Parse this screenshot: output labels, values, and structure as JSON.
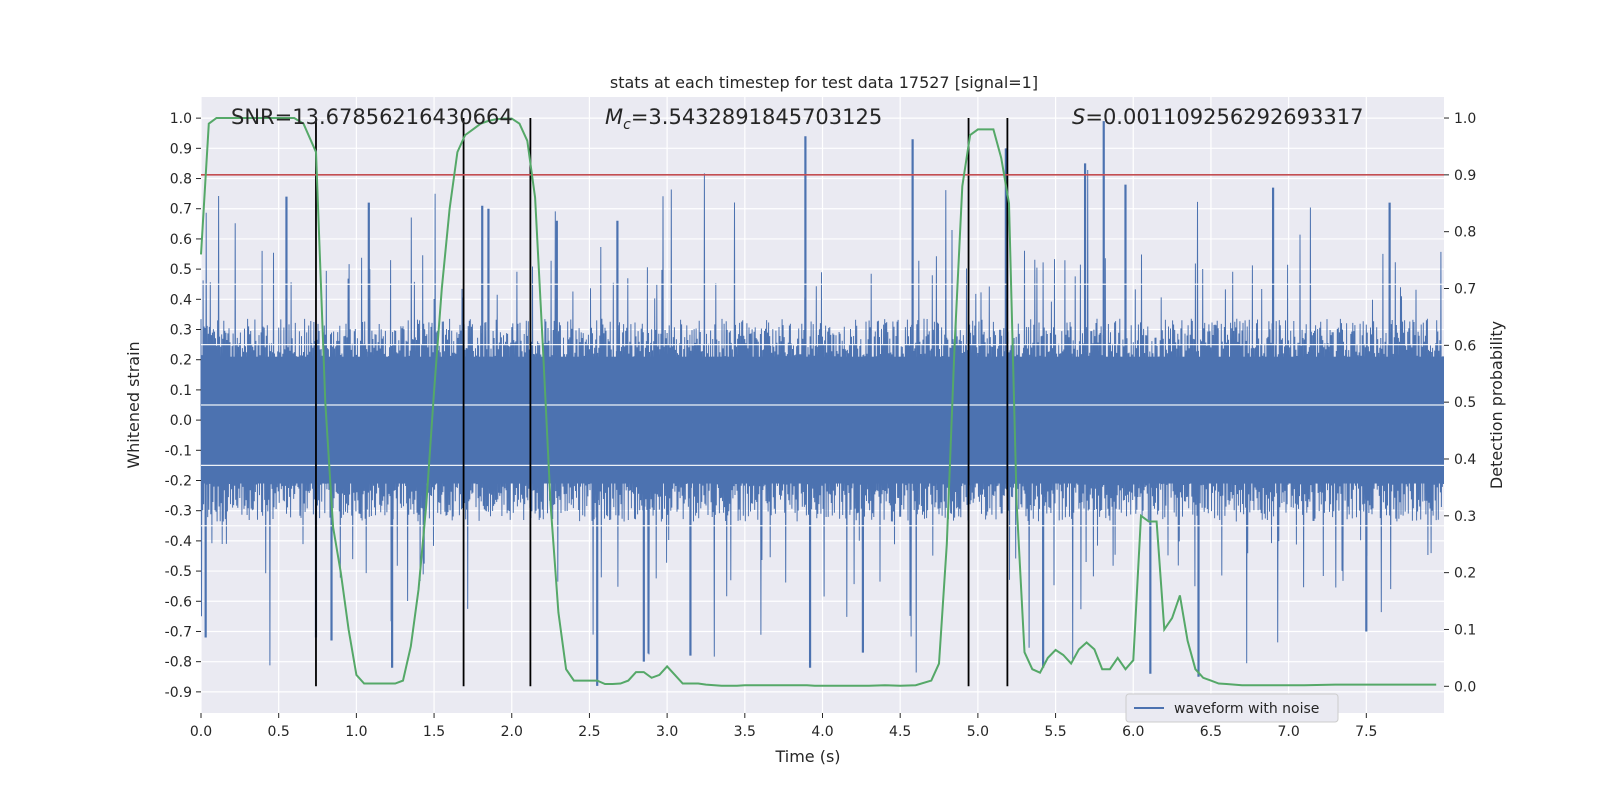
{
  "chart_data": {
    "type": "line",
    "title": "stats at each timestep for test data 17527 [signal=1]",
    "xlabel": "Time (s)",
    "ylabel": "Whitened strain",
    "y2label": "Detection probability",
    "xlim": [
      0.0,
      8.0
    ],
    "ylim": [
      -0.97,
      1.07
    ],
    "y2lim": [
      -0.047,
      1.037
    ],
    "xticks": [
      0.0,
      0.5,
      1.0,
      1.5,
      2.0,
      2.5,
      3.0,
      3.5,
      4.0,
      4.5,
      5.0,
      5.5,
      6.0,
      6.5,
      7.0,
      7.5
    ],
    "xtick_labels": [
      "0.0",
      "0.5",
      "1.0",
      "1.5",
      "2.0",
      "2.5",
      "3.0",
      "3.5",
      "4.0",
      "4.5",
      "5.0",
      "5.5",
      "6.0",
      "6.5",
      "7.0",
      "7.5"
    ],
    "yticks": [
      1.0,
      0.9,
      0.8,
      0.7,
      0.6,
      0.5,
      0.4,
      0.3,
      0.2,
      0.1,
      0.0,
      -0.1,
      -0.2,
      -0.3,
      -0.4,
      -0.5,
      -0.6,
      -0.7,
      -0.8,
      -0.9
    ],
    "ytick_labels": [
      "1.0",
      "0.9",
      "0.8",
      "0.7",
      "0.6",
      "0.5",
      "0.4",
      "0.3",
      "0.2",
      "0.1",
      "0.0",
      "-0.1",
      "-0.2",
      "-0.3",
      "-0.4",
      "-0.5",
      "-0.6",
      "-0.7",
      "-0.8",
      "-0.9"
    ],
    "y2ticks": [
      1.0,
      0.9,
      0.8,
      0.7,
      0.6,
      0.5,
      0.4,
      0.3,
      0.2,
      0.1,
      0.0
    ],
    "y2tick_labels": [
      "1.0",
      "0.9",
      "0.8",
      "0.7",
      "0.6",
      "0.5",
      "0.4",
      "0.3",
      "0.2",
      "0.1",
      "0.0"
    ],
    "annotations": {
      "snr": "SNR=13.67856216430664",
      "mc_symbol": "M",
      "mc_sub": "c",
      "mc_value": "=3.5432891845703125",
      "s_symbol": "S",
      "s_value": "=0.001109256292693317"
    },
    "legend": {
      "label": "waveform with noise",
      "position": "lower-right"
    },
    "threshold_line": {
      "y2": 0.9,
      "color": "#c44e52"
    },
    "vertical_markers": [
      0.74,
      1.69,
      2.12,
      4.94,
      5.19
    ],
    "waveform": {
      "name": "waveform with noise",
      "color": "#4c72b0",
      "duration": 8.0,
      "core_amplitude": 0.28,
      "peaks": [
        {
          "t": 0.55,
          "v": 0.74
        },
        {
          "t": 0.74,
          "v": -0.72
        },
        {
          "t": 0.84,
          "v": -0.73
        },
        {
          "t": 1.08,
          "v": 0.72
        },
        {
          "t": 1.23,
          "v": -0.82
        },
        {
          "t": 1.81,
          "v": 0.71
        },
        {
          "t": 1.85,
          "v": 0.7
        },
        {
          "t": 2.29,
          "v": 0.66
        },
        {
          "t": 2.55,
          "v": -0.88
        },
        {
          "t": 2.68,
          "v": 0.66
        },
        {
          "t": 2.85,
          "v": -0.8
        },
        {
          "t": 3.15,
          "v": -0.78
        },
        {
          "t": 3.89,
          "v": 0.94
        },
        {
          "t": 3.92,
          "v": -0.82
        },
        {
          "t": 4.26,
          "v": -0.77
        },
        {
          "t": 4.58,
          "v": 0.93
        },
        {
          "t": 5.18,
          "v": 0.9
        },
        {
          "t": 5.42,
          "v": -0.82
        },
        {
          "t": 5.69,
          "v": 0.85
        },
        {
          "t": 5.81,
          "v": 0.99
        },
        {
          "t": 5.95,
          "v": 0.78
        },
        {
          "t": 6.11,
          "v": -0.84
        },
        {
          "t": 6.42,
          "v": -0.85
        },
        {
          "t": 6.9,
          "v": 0.77
        },
        {
          "t": 7.5,
          "v": -0.7
        },
        {
          "t": 7.65,
          "v": 0.72
        },
        {
          "t": 0.03,
          "v": -0.72
        }
      ]
    },
    "detection_probability": {
      "color": "#55a868",
      "x": [
        0.0,
        0.05,
        0.1,
        0.2,
        0.3,
        0.4,
        0.5,
        0.6,
        0.66,
        0.74,
        0.8,
        0.85,
        0.9,
        0.95,
        1.0,
        1.05,
        1.1,
        1.2,
        1.25,
        1.3,
        1.35,
        1.4,
        1.45,
        1.5,
        1.55,
        1.6,
        1.65,
        1.7,
        1.75,
        1.8,
        1.85,
        1.9,
        1.95,
        2.0,
        2.05,
        2.1,
        2.15,
        2.2,
        2.25,
        2.3,
        2.35,
        2.4,
        2.45,
        2.55,
        2.6,
        2.65,
        2.7,
        2.75,
        2.8,
        2.85,
        2.9,
        2.95,
        3.0,
        3.05,
        3.1,
        3.15,
        3.2,
        3.25,
        3.35,
        3.45,
        3.5,
        3.6,
        3.7,
        3.8,
        3.9,
        3.95,
        4.0,
        4.1,
        4.2,
        4.3,
        4.4,
        4.5,
        4.6,
        4.7,
        4.75,
        4.8,
        4.85,
        4.9,
        4.95,
        5.0,
        5.05,
        5.1,
        5.15,
        5.2,
        5.25,
        5.3,
        5.35,
        5.4,
        5.45,
        5.5,
        5.55,
        5.6,
        5.65,
        5.7,
        5.75,
        5.8,
        5.85,
        5.9,
        5.95,
        6.0,
        6.05,
        6.1,
        6.15,
        6.2,
        6.25,
        6.3,
        6.35,
        6.4,
        6.45,
        6.5,
        6.55,
        6.6,
        6.65,
        6.7,
        6.75,
        6.8,
        6.9,
        7.0,
        7.1,
        7.3,
        7.5,
        7.7,
        7.9,
        7.95
      ],
      "y": [
        0.76,
        0.99,
        1.0,
        1.0,
        1.0,
        1.0,
        1.0,
        1.0,
        0.99,
        0.94,
        0.5,
        0.28,
        0.2,
        0.1,
        0.02,
        0.005,
        0.005,
        0.005,
        0.005,
        0.01,
        0.07,
        0.17,
        0.32,
        0.52,
        0.7,
        0.84,
        0.94,
        0.97,
        0.98,
        0.99,
        0.995,
        0.998,
        0.999,
        0.999,
        0.99,
        0.96,
        0.86,
        0.6,
        0.32,
        0.13,
        0.03,
        0.01,
        0.01,
        0.01,
        0.004,
        0.004,
        0.005,
        0.01,
        0.025,
        0.025,
        0.015,
        0.02,
        0.035,
        0.02,
        0.005,
        0.005,
        0.005,
        0.003,
        0.001,
        0.001,
        0.002,
        0.002,
        0.002,
        0.002,
        0.002,
        0.001,
        0.001,
        0.001,
        0.001,
        0.001,
        0.002,
        0.001,
        0.002,
        0.01,
        0.04,
        0.25,
        0.6,
        0.88,
        0.97,
        0.98,
        0.98,
        0.98,
        0.93,
        0.85,
        0.32,
        0.06,
        0.03,
        0.024,
        0.05,
        0.064,
        0.055,
        0.04,
        0.065,
        0.077,
        0.065,
        0.03,
        0.03,
        0.05,
        0.03,
        0.046,
        0.3,
        0.29,
        0.29,
        0.1,
        0.12,
        0.16,
        0.08,
        0.03,
        0.015,
        0.01,
        0.005,
        0.004,
        0.003,
        0.002,
        0.002,
        0.002,
        0.002,
        0.002,
        0.002,
        0.003,
        0.003,
        0.003,
        0.003,
        0.003
      ]
    }
  }
}
